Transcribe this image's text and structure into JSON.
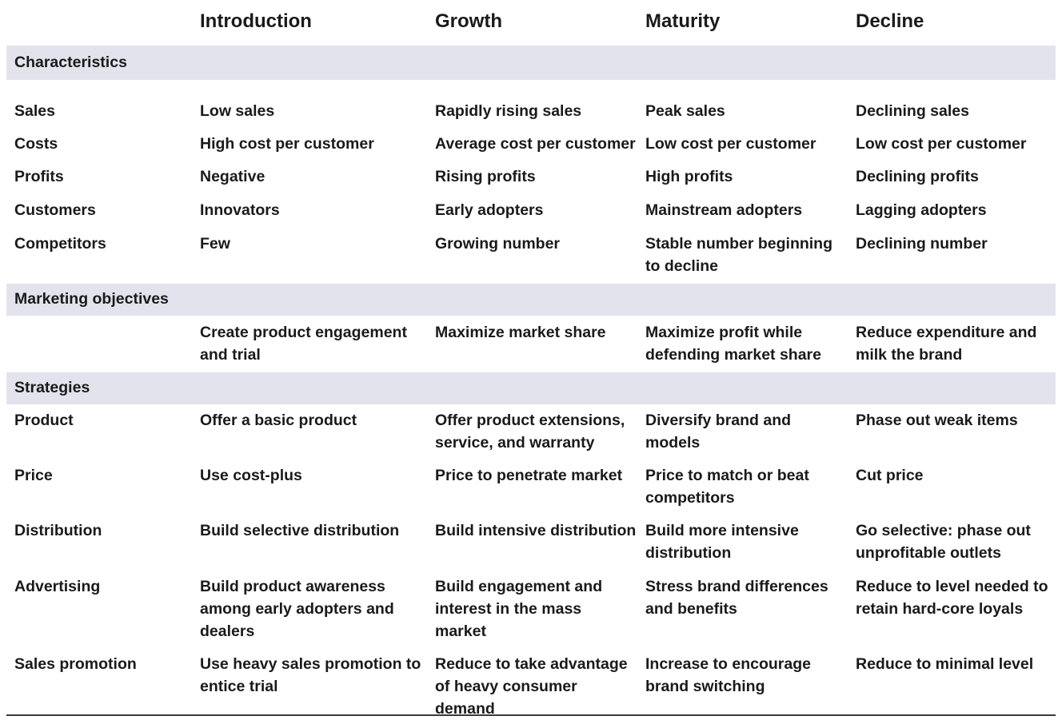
{
  "columns": [
    "Introduction",
    "Growth",
    "Maturity",
    "Decline"
  ],
  "sections": [
    {
      "title": "Characteristics",
      "rows": [
        {
          "label": "Sales",
          "cells": [
            "Low sales",
            "Rapidly rising sales",
            "Peak sales",
            "Declining sales"
          ]
        },
        {
          "label": "Costs",
          "cells": [
            "High cost per customer",
            "Average cost per customer",
            "Low cost per customer",
            "Low cost per customer"
          ]
        },
        {
          "label": "Profits",
          "cells": [
            "Negative",
            "Rising profits",
            "High profits",
            "Declining profits"
          ]
        },
        {
          "label": "Customers",
          "cells": [
            "Innovators",
            "Early adopters",
            "Mainstream adopters",
            "Lagging adopters"
          ]
        },
        {
          "label": "Competitors",
          "cells": [
            "Few",
            "Growing number",
            "Stable number beginning to decline",
            "Declining number"
          ]
        }
      ]
    },
    {
      "title": "Marketing objectives",
      "rows": [
        {
          "label": "",
          "cells": [
            "Create product engagement and trial",
            "Maximize market share",
            "Maximize profit while defending market share",
            "Reduce expenditure and milk the brand"
          ]
        }
      ]
    },
    {
      "title": "Strategies",
      "rows": [
        {
          "label": "Product",
          "cells": [
            "Offer a basic product",
            "Offer product extensions, service, and warranty",
            "Diversify brand and models",
            "Phase out weak items"
          ]
        },
        {
          "label": "Price",
          "cells": [
            "Use cost-plus",
            "Price to penetrate market",
            "Price to match or beat competitors",
            "Cut price"
          ]
        },
        {
          "label": "Distribution",
          "cells": [
            "Build selective distribution",
            "Build intensive distribution",
            "Build more intensive distribution",
            "Go selective: phase out unprofitable outlets"
          ]
        },
        {
          "label": "Advertising",
          "cells": [
            "Build product awareness among early adopters and dealers",
            "Build engagement and interest in the mass market",
            "Stress brand differences and benefits",
            "Reduce to level needed to retain hard-core loyals"
          ]
        },
        {
          "label": "Sales promotion",
          "cells": [
            "Use heavy sales promotion to entice trial",
            "Reduce to take advantage of heavy consumer demand",
            "Increase to encourage brand switching",
            "Reduce to minimal level"
          ]
        }
      ]
    }
  ]
}
